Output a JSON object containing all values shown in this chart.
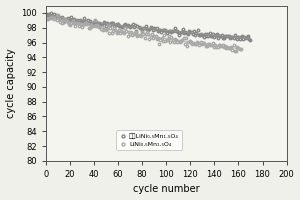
{
  "title": "",
  "xlabel": "cycle number",
  "ylabel": "cycle capacity",
  "xlim": [
    0,
    200
  ],
  "ylim": [
    80,
    101
  ],
  "yticks": [
    80,
    82,
    84,
    86,
    88,
    90,
    92,
    94,
    96,
    98,
    100
  ],
  "xticks": [
    0,
    20,
    40,
    60,
    80,
    100,
    120,
    140,
    160,
    180,
    200
  ],
  "series1_label": "改性LiNi₀.₅Mn₁.₅O₄",
  "series2_label": "LiNi₀.₅Mn₁.₅O₄",
  "line_color": "#888888",
  "marker_color1": "#888888",
  "marker_color2": "#aaaaaa",
  "bg_color": "#f5f5f0"
}
